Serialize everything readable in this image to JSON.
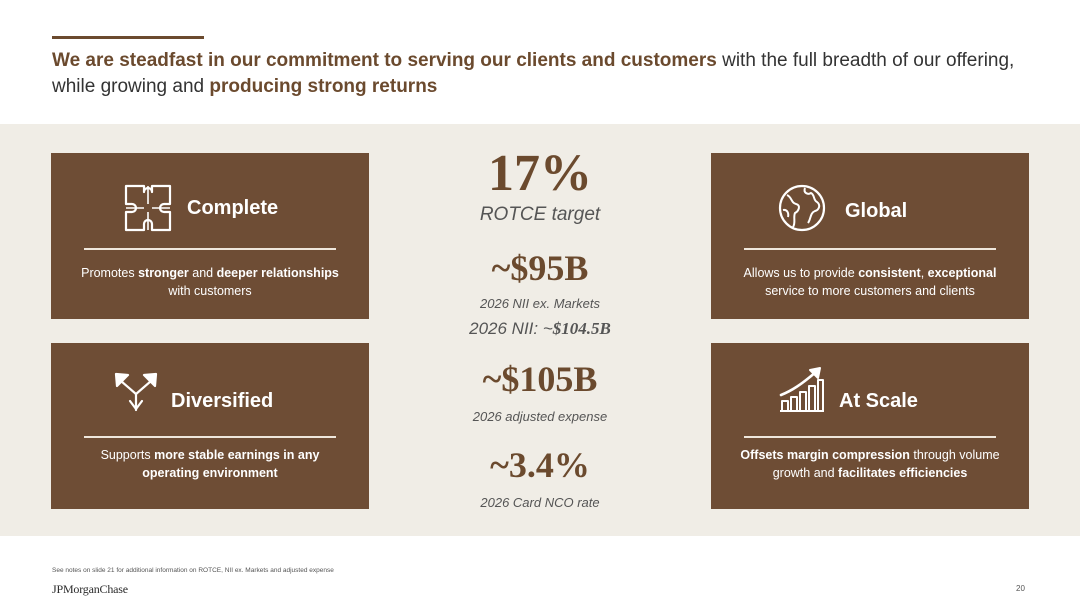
{
  "headline": {
    "em1": "We are steadfast in our commitment to serving our clients and customers",
    "plain1": " with the full breadth of our offering, while growing and ",
    "em2": "producing strong returns"
  },
  "cards": {
    "complete": {
      "title": "Complete",
      "icon": "puzzle-icon",
      "desc_parts": [
        "Promotes ",
        "stronger",
        " and ",
        "deeper",
        " ",
        "relationships",
        " with customers"
      ]
    },
    "global": {
      "title": "Global",
      "icon": "globe-icon",
      "desc_parts": [
        "Allows us to provide ",
        "consistent",
        ", ",
        "exceptional",
        " service to more customers and clients"
      ]
    },
    "diversified": {
      "title": "Diversified",
      "icon": "branching-arrows-icon",
      "desc_parts": [
        "Supports ",
        "more stable earnings in any operating environment"
      ]
    },
    "scale": {
      "title": "At Scale",
      "icon": "growth-chart-icon",
      "desc_parts": [
        "Offsets margin compression",
        " through volume growth and ",
        "facilitates efficiencies"
      ]
    }
  },
  "metrics": {
    "rotce_value": "17%",
    "rotce_label": "ROTCE target",
    "nii_value": "~$95B",
    "nii_label": "2026 NII ex. Markets",
    "nii_total_label": "2026 NII: ~",
    "nii_total_value": "$104.5B",
    "expense_value": "~$105B",
    "expense_label": "2026 adjusted expense",
    "nco_value": "~3.4%",
    "nco_label": "2026 Card NCO rate"
  },
  "footer": {
    "footnote": "See notes on slide 21 for additional information on ROTCE, NII ex. Markets and adjusted expense",
    "logo": "JPMorganChase",
    "page_number": "20"
  },
  "colors": {
    "brown": "#6e4d35",
    "accent_text": "#6b4a2e",
    "band": "#f0ede6"
  }
}
